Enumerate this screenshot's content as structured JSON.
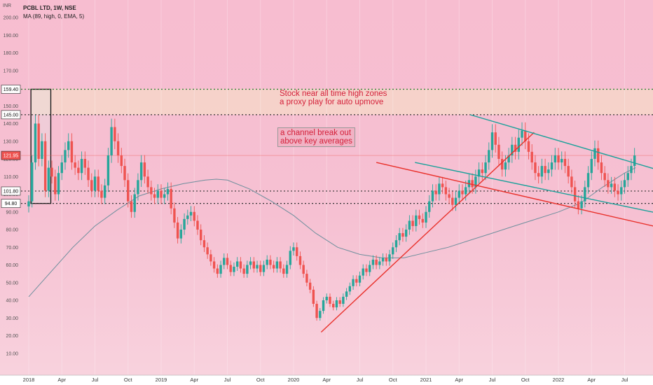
{
  "header": {
    "symbol_line": "PCBL LTD, 1W, NSE",
    "indicator_line": "MA (89, high, 0, EMA, 5)",
    "currency": "INR"
  },
  "annotations": [
    {
      "text_1": "Stock near all time high zones",
      "text_2": "a proxy play for auto upmove"
    },
    {
      "text_1": "a channel break out",
      "text_2": "above key averages"
    }
  ],
  "colors": {
    "up": "#26a69a",
    "down": "#ef5350",
    "ma": "#6e8f9d",
    "channel": "#1aa19a",
    "support": "#e9302a",
    "box_fill": "#f6d6c9"
  },
  "chart_data": {
    "type": "candlestick",
    "symbol": "PCBL LTD",
    "interval": "1W",
    "exchange": "NSE",
    "ylim": [
      0,
      203
    ],
    "y_ticks": [
      10,
      20,
      30,
      40,
      50,
      60,
      70,
      80,
      90,
      100,
      110,
      120,
      130,
      140,
      150,
      160,
      170,
      180,
      190,
      200
    ],
    "y_tick_labels": [
      "10.00",
      "20.00",
      "30.00",
      "40.00",
      "50.00",
      "60.00",
      "70.00",
      "80.00",
      "90.00",
      "100.00",
      "110.00",
      "120.00",
      "130.00",
      "140.00",
      "150.00",
      "160.00",
      "170.00",
      "180.00",
      "190.00",
      "200.00"
    ],
    "x_ticks": [
      {
        "label": "2018",
        "t": 0
      },
      {
        "label": "Apr",
        "t": 3
      },
      {
        "label": "Jul",
        "t": 6
      },
      {
        "label": "Oct",
        "t": 9
      },
      {
        "label": "2019",
        "t": 12
      },
      {
        "label": "Apr",
        "t": 15
      },
      {
        "label": "Jul",
        "t": 18
      },
      {
        "label": "Oct",
        "t": 21
      },
      {
        "label": "2020",
        "t": 24
      },
      {
        "label": "Apr",
        "t": 27
      },
      {
        "label": "Jul",
        "t": 30
      },
      {
        "label": "Oct",
        "t": 33
      },
      {
        "label": "2021",
        "t": 36
      },
      {
        "label": "Apr",
        "t": 39
      },
      {
        "label": "Jul",
        "t": 42
      },
      {
        "label": "Oct",
        "t": 45
      },
      {
        "label": "2022",
        "t": 48
      },
      {
        "label": "Apr",
        "t": 51
      },
      {
        "label": "Jul",
        "t": 54
      }
    ],
    "horizontal_levels": [
      {
        "value": 159.4,
        "label": "159.40",
        "style": "dotted-green"
      },
      {
        "value": 145.0,
        "label": "145.00",
        "style": "dotted-dark"
      },
      {
        "value": 101.8,
        "label": "101.80",
        "style": "dotted-dark"
      },
      {
        "value": 94.8,
        "label": "94.80",
        "style": "dotted-dark"
      }
    ],
    "last_price": {
      "value": 121.95,
      "label": "121.95"
    },
    "close_series": [
      {
        "t": 0.0,
        "c": 96
      },
      {
        "t": 0.3,
        "c": 118
      },
      {
        "t": 0.6,
        "c": 140
      },
      {
        "t": 0.9,
        "c": 120
      },
      {
        "t": 1.2,
        "c": 130
      },
      {
        "t": 1.5,
        "c": 102
      },
      {
        "t": 1.8,
        "c": 115
      },
      {
        "t": 2.1,
        "c": 110
      },
      {
        "t": 2.4,
        "c": 100
      },
      {
        "t": 2.7,
        "c": 112
      },
      {
        "t": 3.0,
        "c": 118
      },
      {
        "t": 3.3,
        "c": 125
      },
      {
        "t": 3.6,
        "c": 130
      },
      {
        "t": 3.9,
        "c": 118
      },
      {
        "t": 4.2,
        "c": 115
      },
      {
        "t": 4.5,
        "c": 112
      },
      {
        "t": 4.8,
        "c": 120
      },
      {
        "t": 5.1,
        "c": 115
      },
      {
        "t": 5.4,
        "c": 108
      },
      {
        "t": 5.7,
        "c": 102
      },
      {
        "t": 6.0,
        "c": 110
      },
      {
        "t": 6.3,
        "c": 102
      },
      {
        "t": 6.6,
        "c": 98
      },
      {
        "t": 6.9,
        "c": 105
      },
      {
        "t": 7.2,
        "c": 122
      },
      {
        "t": 7.5,
        "c": 138
      },
      {
        "t": 7.8,
        "c": 130
      },
      {
        "t": 8.1,
        "c": 122
      },
      {
        "t": 8.4,
        "c": 116
      },
      {
        "t": 8.7,
        "c": 108
      },
      {
        "t": 9.0,
        "c": 96
      },
      {
        "t": 9.3,
        "c": 90
      },
      {
        "t": 9.6,
        "c": 100
      },
      {
        "t": 9.9,
        "c": 108
      },
      {
        "t": 10.2,
        "c": 118
      },
      {
        "t": 10.5,
        "c": 110
      },
      {
        "t": 10.8,
        "c": 104
      },
      {
        "t": 11.1,
        "c": 100
      },
      {
        "t": 11.4,
        "c": 98
      },
      {
        "t": 11.7,
        "c": 102
      },
      {
        "t": 12.0,
        "c": 98
      },
      {
        "t": 12.3,
        "c": 100
      },
      {
        "t": 12.6,
        "c": 103
      },
      {
        "t": 12.9,
        "c": 92
      },
      {
        "t": 13.2,
        "c": 84
      },
      {
        "t": 13.5,
        "c": 75
      },
      {
        "t": 13.8,
        "c": 80
      },
      {
        "t": 14.1,
        "c": 86
      },
      {
        "t": 14.4,
        "c": 88
      },
      {
        "t": 14.7,
        "c": 90
      },
      {
        "t": 15.0,
        "c": 85
      },
      {
        "t": 15.3,
        "c": 80
      },
      {
        "t": 15.6,
        "c": 74
      },
      {
        "t": 15.9,
        "c": 70
      },
      {
        "t": 16.2,
        "c": 66
      },
      {
        "t": 16.5,
        "c": 62
      },
      {
        "t": 16.8,
        "c": 58
      },
      {
        "t": 17.1,
        "c": 55
      },
      {
        "t": 17.4,
        "c": 60
      },
      {
        "t": 17.7,
        "c": 64
      },
      {
        "t": 18.0,
        "c": 60
      },
      {
        "t": 18.3,
        "c": 56
      },
      {
        "t": 18.6,
        "c": 59
      },
      {
        "t": 18.9,
        "c": 62
      },
      {
        "t": 19.2,
        "c": 58
      },
      {
        "t": 19.5,
        "c": 55
      },
      {
        "t": 19.8,
        "c": 60
      },
      {
        "t": 20.1,
        "c": 62
      },
      {
        "t": 20.4,
        "c": 58
      },
      {
        "t": 20.7,
        "c": 60
      },
      {
        "t": 21.0,
        "c": 56
      },
      {
        "t": 21.3,
        "c": 60
      },
      {
        "t": 21.6,
        "c": 63
      },
      {
        "t": 21.9,
        "c": 60
      },
      {
        "t": 22.2,
        "c": 58
      },
      {
        "t": 22.5,
        "c": 62
      },
      {
        "t": 22.8,
        "c": 58
      },
      {
        "t": 23.1,
        "c": 55
      },
      {
        "t": 23.4,
        "c": 60
      },
      {
        "t": 23.7,
        "c": 68
      },
      {
        "t": 24.0,
        "c": 70
      },
      {
        "t": 24.3,
        "c": 65
      },
      {
        "t": 24.6,
        "c": 60
      },
      {
        "t": 24.9,
        "c": 55
      },
      {
        "t": 25.2,
        "c": 50
      },
      {
        "t": 25.5,
        "c": 46
      },
      {
        "t": 25.8,
        "c": 38
      },
      {
        "t": 26.1,
        "c": 30
      },
      {
        "t": 26.4,
        "c": 34
      },
      {
        "t": 26.7,
        "c": 40
      },
      {
        "t": 27.0,
        "c": 42
      },
      {
        "t": 27.3,
        "c": 38
      },
      {
        "t": 27.6,
        "c": 36
      },
      {
        "t": 27.9,
        "c": 40
      },
      {
        "t": 28.2,
        "c": 38
      },
      {
        "t": 28.5,
        "c": 42
      },
      {
        "t": 28.8,
        "c": 45
      },
      {
        "t": 29.1,
        "c": 48
      },
      {
        "t": 29.4,
        "c": 52
      },
      {
        "t": 29.7,
        "c": 50
      },
      {
        "t": 30.0,
        "c": 54
      },
      {
        "t": 30.3,
        "c": 58
      },
      {
        "t": 30.6,
        "c": 56
      },
      {
        "t": 30.9,
        "c": 60
      },
      {
        "t": 31.2,
        "c": 63
      },
      {
        "t": 31.5,
        "c": 60
      },
      {
        "t": 31.8,
        "c": 62
      },
      {
        "t": 32.1,
        "c": 64
      },
      {
        "t": 32.4,
        "c": 62
      },
      {
        "t": 32.7,
        "c": 66
      },
      {
        "t": 33.0,
        "c": 70
      },
      {
        "t": 33.3,
        "c": 74
      },
      {
        "t": 33.6,
        "c": 78
      },
      {
        "t": 33.9,
        "c": 76
      },
      {
        "t": 34.2,
        "c": 80
      },
      {
        "t": 34.5,
        "c": 85
      },
      {
        "t": 34.8,
        "c": 82
      },
      {
        "t": 35.1,
        "c": 88
      },
      {
        "t": 35.4,
        "c": 86
      },
      {
        "t": 35.7,
        "c": 84
      },
      {
        "t": 36.0,
        "c": 90
      },
      {
        "t": 36.3,
        "c": 96
      },
      {
        "t": 36.6,
        "c": 102
      },
      {
        "t": 36.9,
        "c": 100
      },
      {
        "t": 37.2,
        "c": 106
      },
      {
        "t": 37.5,
        "c": 104
      },
      {
        "t": 37.8,
        "c": 100
      },
      {
        "t": 38.1,
        "c": 98
      },
      {
        "t": 38.4,
        "c": 94
      },
      {
        "t": 38.7,
        "c": 98
      },
      {
        "t": 39.0,
        "c": 102
      },
      {
        "t": 39.3,
        "c": 100
      },
      {
        "t": 39.6,
        "c": 104
      },
      {
        "t": 39.9,
        "c": 108
      },
      {
        "t": 40.2,
        "c": 104
      },
      {
        "t": 40.5,
        "c": 110
      },
      {
        "t": 40.8,
        "c": 114
      },
      {
        "t": 41.1,
        "c": 112
      },
      {
        "t": 41.4,
        "c": 118
      },
      {
        "t": 41.7,
        "c": 125
      },
      {
        "t": 42.0,
        "c": 135
      },
      {
        "t": 42.3,
        "c": 128
      },
      {
        "t": 42.6,
        "c": 120
      },
      {
        "t": 42.9,
        "c": 114
      },
      {
        "t": 43.2,
        "c": 118
      },
      {
        "t": 43.5,
        "c": 122
      },
      {
        "t": 43.8,
        "c": 128
      },
      {
        "t": 44.1,
        "c": 124
      },
      {
        "t": 44.4,
        "c": 132
      },
      {
        "t": 44.7,
        "c": 136
      },
      {
        "t": 45.0,
        "c": 130
      },
      {
        "t": 45.3,
        "c": 124
      },
      {
        "t": 45.6,
        "c": 118
      },
      {
        "t": 45.9,
        "c": 112
      },
      {
        "t": 46.2,
        "c": 110
      },
      {
        "t": 46.5,
        "c": 116
      },
      {
        "t": 46.8,
        "c": 112
      },
      {
        "t": 47.1,
        "c": 114
      },
      {
        "t": 47.4,
        "c": 118
      },
      {
        "t": 47.7,
        "c": 122
      },
      {
        "t": 48.0,
        "c": 118
      },
      {
        "t": 48.3,
        "c": 120
      },
      {
        "t": 48.6,
        "c": 116
      },
      {
        "t": 48.9,
        "c": 110
      },
      {
        "t": 49.2,
        "c": 104
      },
      {
        "t": 49.5,
        "c": 96
      },
      {
        "t": 49.8,
        "c": 92
      },
      {
        "t": 50.1,
        "c": 96
      },
      {
        "t": 50.4,
        "c": 104
      },
      {
        "t": 50.7,
        "c": 112
      },
      {
        "t": 51.0,
        "c": 120
      },
      {
        "t": 51.3,
        "c": 126
      },
      {
        "t": 51.6,
        "c": 118
      },
      {
        "t": 51.9,
        "c": 112
      },
      {
        "t": 52.2,
        "c": 108
      },
      {
        "t": 52.5,
        "c": 104
      },
      {
        "t": 52.8,
        "c": 106
      },
      {
        "t": 53.1,
        "c": 102
      },
      {
        "t": 53.4,
        "c": 100
      },
      {
        "t": 53.7,
        "c": 104
      },
      {
        "t": 54.0,
        "c": 108
      },
      {
        "t": 54.3,
        "c": 112
      },
      {
        "t": 54.6,
        "c": 116
      },
      {
        "t": 54.9,
        "c": 121.95
      }
    ],
    "moving_average": {
      "name": "MA (89, high, 0, EMA, 5)",
      "points": [
        {
          "t": 0,
          "v": 42
        },
        {
          "t": 2,
          "v": 56
        },
        {
          "t": 4,
          "v": 70
        },
        {
          "t": 6,
          "v": 82
        },
        {
          "t": 8,
          "v": 91
        },
        {
          "t": 10,
          "v": 99
        },
        {
          "t": 12,
          "v": 103
        },
        {
          "t": 14,
          "v": 106
        },
        {
          "t": 16,
          "v": 108
        },
        {
          "t": 17,
          "v": 108.5
        },
        {
          "t": 18,
          "v": 108
        },
        {
          "t": 20,
          "v": 103
        },
        {
          "t": 22,
          "v": 96
        },
        {
          "t": 24,
          "v": 88
        },
        {
          "t": 26,
          "v": 78
        },
        {
          "t": 28,
          "v": 70
        },
        {
          "t": 30,
          "v": 66
        },
        {
          "t": 32,
          "v": 64
        },
        {
          "t": 34,
          "v": 64
        },
        {
          "t": 36,
          "v": 67
        },
        {
          "t": 38,
          "v": 70
        },
        {
          "t": 40,
          "v": 74
        },
        {
          "t": 42,
          "v": 78
        },
        {
          "t": 44,
          "v": 82
        },
        {
          "t": 46,
          "v": 86
        },
        {
          "t": 48,
          "v": 90
        },
        {
          "t": 50,
          "v": 95
        },
        {
          "t": 52,
          "v": 104
        },
        {
          "t": 54,
          "v": 112
        },
        {
          "t": 55,
          "v": 115
        }
      ]
    },
    "trendlines": [
      {
        "name": "rising-support",
        "color": "red",
        "from": {
          "t": 26.5,
          "v": 22
        },
        "to": {
          "t": 45.8,
          "v": 135
        }
      },
      {
        "name": "falling-support",
        "color": "red",
        "from": {
          "t": 31.5,
          "v": 118
        },
        "to": {
          "t": 58,
          "v": 80
        }
      },
      {
        "name": "channel-upper",
        "color": "teal",
        "from": {
          "t": 40,
          "v": 145
        },
        "to": {
          "t": 58,
          "v": 112
        }
      },
      {
        "name": "channel-lower",
        "color": "teal",
        "from": {
          "t": 35,
          "v": 118
        },
        "to": {
          "t": 58,
          "v": 88
        }
      }
    ],
    "zones": [
      {
        "name": "all-time-high-zone",
        "from": {
          "t": 0.2,
          "v": 159.4
        },
        "to": {
          "t": 58,
          "v": 145.0
        }
      },
      {
        "name": "2018-range-box",
        "from": {
          "t": 0.2,
          "v": 159.4
        },
        "to": {
          "t": 2.0,
          "v": 94.8
        }
      }
    ]
  }
}
